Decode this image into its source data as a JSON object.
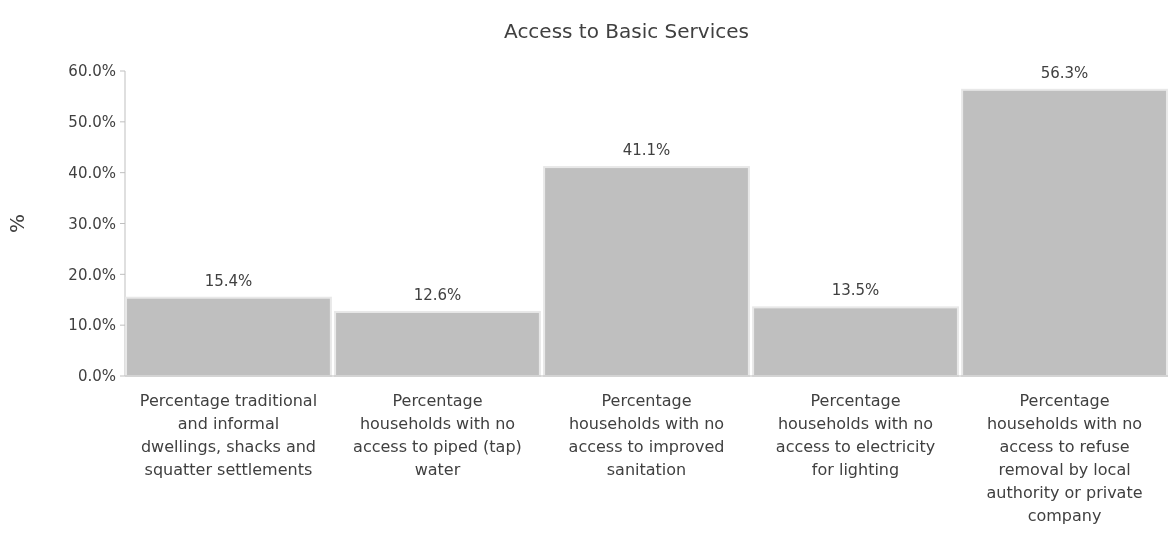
{
  "chart_data": {
    "type": "bar",
    "title": "Access to Basic Services",
    "ylabel": "%",
    "categories": [
      "Percentage traditional and informal dwellings, shacks and squatter settlements",
      "Percentage households with no access to piped (tap) water",
      "Percentage households with no access to improved sanitation",
      "Percentage households with no access to electricity for lighting",
      "Percentage households with no access to refuse removal by local authority or private company"
    ],
    "values": [
      15.4,
      12.6,
      41.1,
      13.5,
      56.3
    ],
    "value_labels": [
      "15.4%",
      "12.6%",
      "41.1%",
      "13.5%",
      "56.3%"
    ],
    "color": "#bfbfbf",
    "ylim": [
      0,
      60
    ],
    "yticks": [
      {
        "value": 0,
        "label": "0.0%"
      },
      {
        "value": 10,
        "label": "10.0%"
      },
      {
        "value": 20,
        "label": "20.0%"
      },
      {
        "value": 30,
        "label": "30.0%"
      },
      {
        "value": 40,
        "label": "40.0%"
      },
      {
        "value": 50,
        "label": "50.0%"
      },
      {
        "value": 60,
        "label": "60.0%"
      }
    ],
    "grid": false
  }
}
